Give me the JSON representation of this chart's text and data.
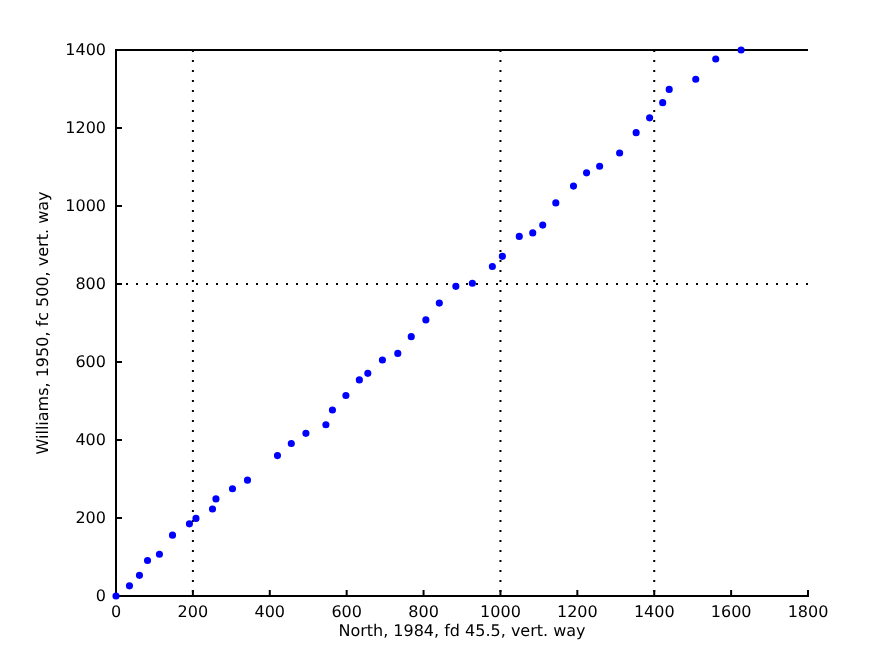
{
  "chart_data": {
    "type": "scatter",
    "xlabel": "North, 1984, fd 45.5, vert. way",
    "ylabel": "Williams, 1950, fc 500, vert. way",
    "xlim": [
      0,
      1800
    ],
    "ylim": [
      0,
      1400
    ],
    "xticks": [
      0,
      200,
      400,
      600,
      800,
      1000,
      1200,
      1400,
      1600,
      1800
    ],
    "yticks": [
      0,
      200,
      400,
      600,
      800,
      1000,
      1200,
      1400
    ],
    "marker": "circle",
    "ref_lines": [
      {
        "axis": "x",
        "value": 200,
        "line_style": "dotted"
      },
      {
        "axis": "x",
        "value": 1000,
        "line_style": "dotted"
      },
      {
        "axis": "x",
        "value": 1400,
        "line_style": "dotted"
      },
      {
        "axis": "y",
        "value": 800,
        "line_style": "dotted"
      }
    ],
    "series": [
      {
        "color": "#0000ff",
        "x": [
          0,
          35,
          61,
          82,
          113,
          147,
          191,
          208,
          251,
          260,
          303,
          342,
          420,
          456,
          494,
          546,
          563,
          598,
          633,
          655,
          693,
          733,
          768,
          806,
          841,
          884,
          927,
          979,
          1005,
          1049,
          1084,
          1110,
          1144,
          1190,
          1224,
          1258,
          1310,
          1353,
          1388,
          1422,
          1439,
          1508,
          1560,
          1626
        ],
        "values": [
          0,
          26,
          53,
          91,
          107,
          156,
          185,
          199,
          223,
          249,
          275,
          297,
          360,
          391,
          417,
          439,
          477,
          514,
          554,
          571,
          605,
          622,
          665,
          708,
          751,
          794,
          802,
          845,
          871,
          922,
          931,
          951,
          1008,
          1051,
          1085,
          1102,
          1136,
          1188,
          1226,
          1265,
          1299,
          1325,
          1377,
          1400
        ]
      }
    ]
  }
}
